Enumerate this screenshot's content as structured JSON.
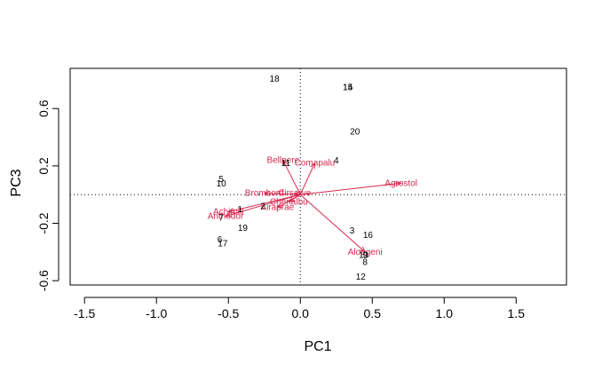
{
  "chart_data": {
    "type": "scatter",
    "subtype": "biplot",
    "xlabel": "PC1",
    "ylabel": "PC3",
    "xlim": [
      -1.6,
      1.85
    ],
    "ylim": [
      -0.63,
      0.88
    ],
    "x_ticks": [
      -1.5,
      -1.0,
      -0.5,
      0.0,
      0.5,
      1.0,
      1.5
    ],
    "x_tick_labels": [
      "-1.5",
      "-1.0",
      "-0.5",
      "0.0",
      "0.5",
      "1.0",
      "1.5"
    ],
    "y_ticks": [
      -0.6,
      -0.2,
      0.2,
      0.6
    ],
    "y_tick_labels": [
      "-0.6",
      "-0.2",
      "0.2",
      "0.6"
    ],
    "reference_lines": {
      "x": 0,
      "y": 0,
      "style": "dotted"
    },
    "colors": {
      "sites": "#000000",
      "species": "#d6284f",
      "axes": "#000000"
    },
    "sites": [
      {
        "label": "1",
        "x": -0.42,
        "y": -0.1
      },
      {
        "label": "2",
        "x": -0.26,
        "y": -0.08
      },
      {
        "label": "3",
        "x": 0.36,
        "y": -0.25
      },
      {
        "label": "4",
        "x": 0.25,
        "y": 0.24
      },
      {
        "label": "5",
        "x": -0.55,
        "y": 0.11
      },
      {
        "label": "6",
        "x": -0.56,
        "y": -0.31
      },
      {
        "label": "7",
        "x": -0.55,
        "y": -0.16
      },
      {
        "label": "8",
        "x": 0.45,
        "y": -0.47
      },
      {
        "label": "9",
        "x": 0.45,
        "y": -0.42
      },
      {
        "label": "10",
        "x": -0.55,
        "y": 0.08
      },
      {
        "label": "11",
        "x": -0.1,
        "y": 0.22
      },
      {
        "label": "12",
        "x": 0.42,
        "y": -0.57
      },
      {
        "label": "13",
        "x": 0.44,
        "y": -0.42
      },
      {
        "label": "14",
        "x": 0.33,
        "y": 0.75
      },
      {
        "label": "15",
        "x": 0.33,
        "y": 0.75
      },
      {
        "label": "16",
        "x": 0.47,
        "y": -0.28
      },
      {
        "label": "17",
        "x": -0.54,
        "y": -0.34
      },
      {
        "label": "18",
        "x": -0.18,
        "y": 0.81
      },
      {
        "label": "19",
        "x": -0.4,
        "y": -0.23
      },
      {
        "label": "20",
        "x": 0.38,
        "y": 0.44
      }
    ],
    "species": [
      {
        "label": "Achimill",
        "x": -0.5,
        "y": -0.12
      },
      {
        "label": "Agrostol",
        "x": 0.7,
        "y": 0.08
      },
      {
        "label": "Airaprae",
        "x": -0.16,
        "y": -0.09
      },
      {
        "label": "Alopgeni",
        "x": 0.45,
        "y": -0.4
      },
      {
        "label": "Anthodor",
        "x": -0.52,
        "y": -0.15
      },
      {
        "label": "Bellpere",
        "x": -0.12,
        "y": 0.24
      },
      {
        "label": "Bromhord",
        "x": -0.25,
        "y": 0.01
      },
      {
        "label": "Chenalbu",
        "x": -0.08,
        "y": -0.05
      },
      {
        "label": "Cirsarve",
        "x": -0.04,
        "y": 0.01
      },
      {
        "label": "Comapalu",
        "x": 0.1,
        "y": 0.22
      }
    ]
  }
}
